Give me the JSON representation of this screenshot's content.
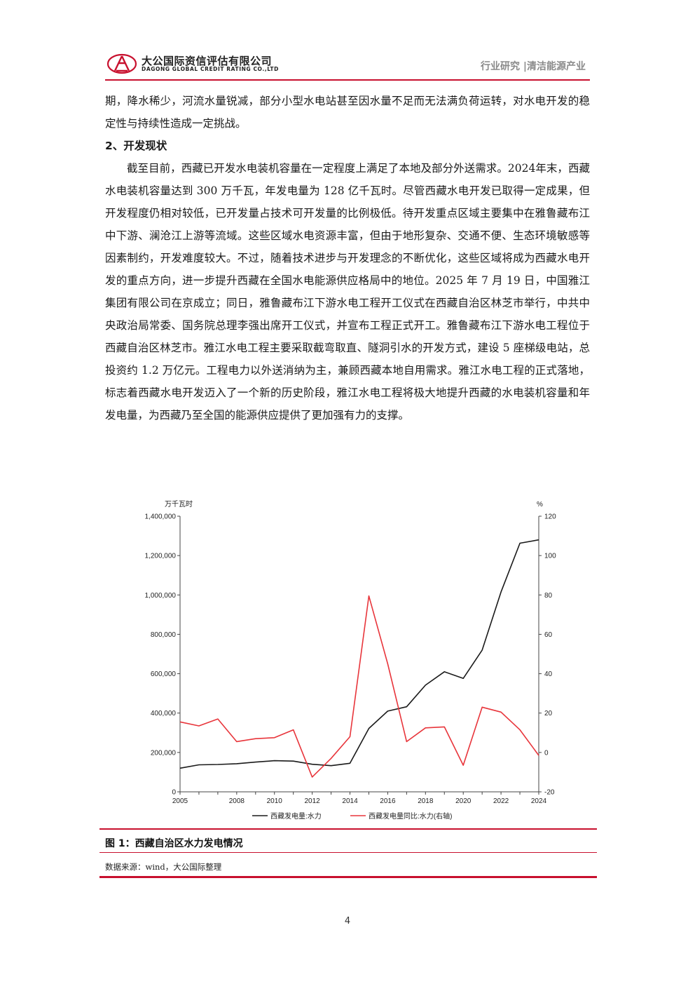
{
  "header": {
    "company_cn": "大公国际资信评估有限公司",
    "company_en": "DAGONG GLOBAL CREDIT RATING CO.,LTD",
    "section": "行业研究 |清洁能源产业",
    "accent_color": "#c8102e"
  },
  "body": {
    "para1": "期，降水稀少，河流水量锐减，部分小型水电站甚至因水量不足而无法满负荷运转，对水电开发的稳定性与持续性造成一定挑战。",
    "heading": "2、开发现状",
    "para2": "截至目前，西藏已开发水电装机容量在一定程度上满足了本地及部分外送需求。2024年末，西藏水电装机容量达到 300 万千瓦，年发电量为 128 亿千瓦时。尽管西藏水电开发已取得一定成果，但开发程度仍相对较低，已开发量占技术可开发量的比例极低。待开发重点区域主要集中在雅鲁藏布江中下游、澜沧江上游等流域。这些区域水电资源丰富，但由于地形复杂、交通不便、生态环境敏感等因素制约，开发难度较大。不过，随着技术进步与开发理念的不断优化，这些区域将成为西藏水电开发的重点方向，进一步提升西藏在全国水电能源供应格局中的地位。2025 年 7 月 19 日，中国雅江集团有限公司在京成立；同日，雅鲁藏布江下游水电工程开工仪式在西藏自治区林芝市举行，中共中央政治局常委、国务院总理李强出席开工仪式，并宣布工程正式开工。雅鲁藏布江下游水电工程位于西藏自治区林芝市。雅江水电工程主要采取截弯取直、隧洞引水的开发方式，建设 5 座梯级电站，总投资约 1.2 万亿元。工程电力以外送消纳为主，兼顾西藏本地自用需求。雅江水电工程的正式落地，标志着西藏水电开发迈入了一个新的历史阶段，雅江水电工程将极大地提升西藏的水电装机容量和年发电量，为西藏乃至全国的能源供应提供了更加强有力的支撑。"
  },
  "figure": {
    "caption": "图 1：西藏自治区水力发电情况",
    "source": "数据来源：wind，大公国际整理"
  },
  "page_number": "4",
  "chart_data": {
    "type": "line",
    "x": [
      2005,
      2006,
      2007,
      2008,
      2009,
      2010,
      2011,
      2012,
      2013,
      2014,
      2015,
      2016,
      2017,
      2018,
      2019,
      2020,
      2021,
      2022,
      2023,
      2024
    ],
    "x_tick_labels": [
      "2005",
      "2008",
      "2010",
      "2012",
      "2014",
      "2016",
      "2018",
      "2020",
      "2022",
      "2024"
    ],
    "left_axis": {
      "unit_label": "万千瓦时",
      "ylim": [
        0,
        1400000
      ],
      "tick_labels": [
        "0",
        "200,000",
        "400,000",
        "600,000",
        "800,000",
        "1,000,000",
        "1,200,000",
        "1,400,000"
      ]
    },
    "right_axis": {
      "unit_label": "%",
      "ylim": [
        -20,
        120
      ],
      "tick_labels": [
        "-20",
        "0",
        "20",
        "40",
        "60",
        "80",
        "100",
        "120"
      ]
    },
    "series": [
      {
        "name": "西藏发电量:水力",
        "axis": "left",
        "color": "#1a1a1a",
        "values": [
          120000,
          137000,
          139000,
          143000,
          151000,
          158000,
          156000,
          140000,
          133000,
          145000,
          322000,
          410000,
          432000,
          542000,
          610000,
          576000,
          720000,
          1015000,
          1263000,
          1280000
        ]
      },
      {
        "name": "西藏发电量同比:水力(右轴)",
        "axis": "right",
        "color": "#e8353b",
        "values": [
          15.5,
          13.5,
          17,
          5.5,
          7,
          7.5,
          11.5,
          -12.5,
          -3,
          8,
          79.5,
          45,
          5.5,
          12.5,
          13,
          -6.5,
          23,
          20.5,
          11.5,
          -1.5
        ]
      }
    ],
    "legend_position": "bottom",
    "grid": false
  }
}
